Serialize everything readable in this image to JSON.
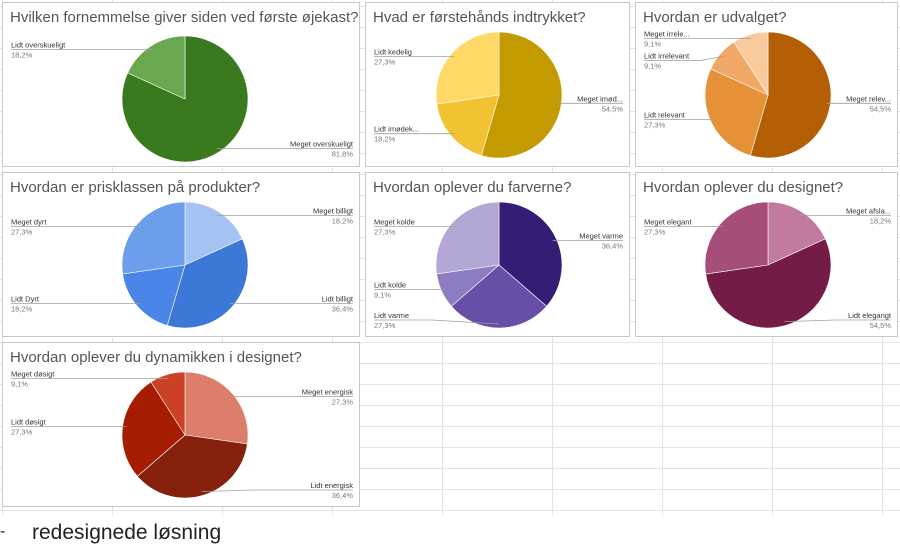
{
  "caption": {
    "bullet": "-",
    "text": "redesignede løsning"
  },
  "chart_data": [
    {
      "type": "pie",
      "title": "Hvilken fornemmelse giver siden ved første øjekast?",
      "slices": [
        {
          "label": "Meget overskueligt",
          "value": 81.8,
          "pct_label": "81,8%",
          "color": "#3a7a1f"
        },
        {
          "label": "Lidt overskueligt",
          "value": 18.2,
          "pct_label": "18,2%",
          "color": "#6aa84f"
        }
      ]
    },
    {
      "type": "pie",
      "title": "Hvad er førstehånds indtrykket?",
      "slices": [
        {
          "label": "Meget imød...",
          "value": 54.5,
          "pct_label": "54,5%",
          "color": "#c39b00"
        },
        {
          "label": "Lidt imødek...",
          "value": 18.2,
          "pct_label": "18,2%",
          "color": "#f1c232"
        },
        {
          "label": "Lidt kedelig",
          "value": 27.3,
          "pct_label": "27,3%",
          "color": "#ffd966"
        }
      ]
    },
    {
      "type": "pie",
      "title": "Hvordan er udvalget?",
      "slices": [
        {
          "label": "Meget relev...",
          "value": 54.5,
          "pct_label": "54,5%",
          "color": "#b45f06"
        },
        {
          "label": "Lidt relevant",
          "value": 27.3,
          "pct_label": "27,3%",
          "color": "#e69138"
        },
        {
          "label": "Lidt irrelevant",
          "value": 9.1,
          "pct_label": "9,1%",
          "color": "#f0a867"
        },
        {
          "label": "Meget irrele...",
          "value": 9.1,
          "pct_label": "9,1%",
          "color": "#f9cb9c"
        }
      ]
    },
    {
      "type": "pie",
      "title": "Hvordan er prisklassen på produkter?",
      "slices": [
        {
          "label": "Meget billigt",
          "value": 18.2,
          "pct_label": "18,2%",
          "color": "#a4c2f4"
        },
        {
          "label": "Lidt billigt",
          "value": 36.4,
          "pct_label": "36,4%",
          "color": "#3c78d8"
        },
        {
          "label": "Lidt Dyrt",
          "value": 18.2,
          "pct_label": "18,2%",
          "color": "#4a86e8"
        },
        {
          "label": "Meget dyrt",
          "value": 27.3,
          "pct_label": "27,3%",
          "color": "#6d9eeb"
        }
      ]
    },
    {
      "type": "pie",
      "title": "Hvordan oplever du farverne?",
      "slices": [
        {
          "label": "Meget varme",
          "value": 36.4,
          "pct_label": "36,4%",
          "color": "#351c75"
        },
        {
          "label": "Lidt varme",
          "value": 27.3,
          "pct_label": "27,3%",
          "color": "#674ea7"
        },
        {
          "label": "Lidt kolde",
          "value": 9.1,
          "pct_label": "9,1%",
          "color": "#8e7cc3"
        },
        {
          "label": "Meget kolde",
          "value": 27.3,
          "pct_label": "27,3%",
          "color": "#b4a7d6"
        }
      ]
    },
    {
      "type": "pie",
      "title": "Hvordan oplever du designet?",
      "slices": [
        {
          "label": "Meget afsla...",
          "value": 18.2,
          "pct_label": "18,2%",
          "color": "#c27ba0"
        },
        {
          "label": "Lidt elegangt",
          "value": 54.5,
          "pct_label": "54,5%",
          "color": "#741b47"
        },
        {
          "label": "Meget elegant",
          "value": 27.3,
          "pct_label": "27,3%",
          "color": "#a64d79"
        }
      ]
    },
    {
      "type": "pie",
      "title": "Hvordan oplever du dynamikken i designet?",
      "slices": [
        {
          "label": "Meget energisk",
          "value": 27.3,
          "pct_label": "27,3%",
          "color": "#dd7e6b"
        },
        {
          "label": "Lidt energisk",
          "value": 36.4,
          "pct_label": "36,4%",
          "color": "#85200c"
        },
        {
          "label": "Lidt døsigt",
          "value": 27.3,
          "pct_label": "27,3%",
          "color": "#a61c00"
        },
        {
          "label": "Meget døsigt",
          "value": 9.1,
          "pct_label": "9,1%",
          "color": "#cc4125"
        }
      ]
    }
  ]
}
